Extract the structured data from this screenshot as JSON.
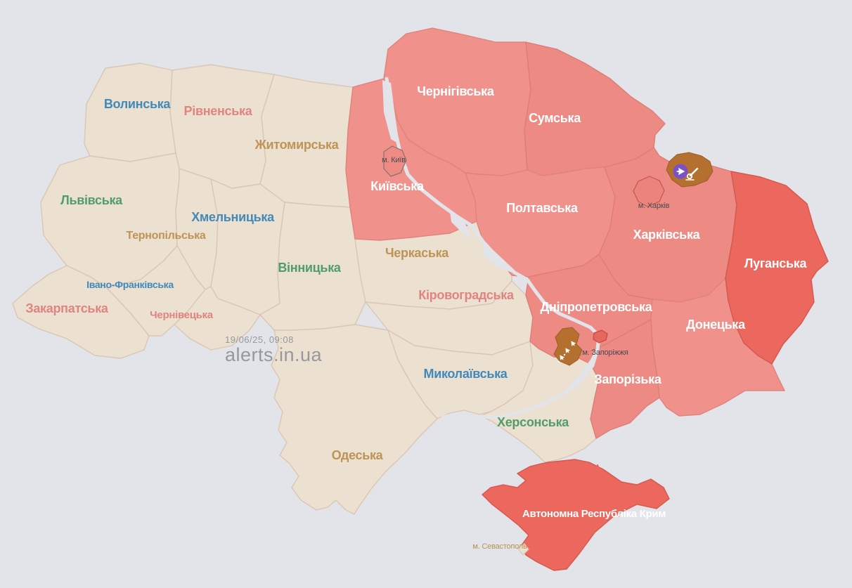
{
  "map": {
    "background_color": "#e3e4e9",
    "watermark": {
      "timestamp": "19/06/25, 09:08",
      "brand": "alerts.in.ua",
      "color": "#97979f"
    },
    "status_colors": {
      "no_alert": "#ece0d1",
      "air_alert": "#f0918c",
      "air_alert_alt": "#ee8a84",
      "occupied_alert": "#ec675d",
      "hromada_artillery": "#b5702f",
      "uav_badge": "#7a52c8"
    },
    "stroke_colors": {
      "no_alert": "#d9c7b2",
      "air_alert": "#e0837d",
      "air_alert_alt": "#de7d77",
      "occupied_alert": "#d4584e",
      "hromada_artillery": "#9a5d26"
    },
    "label_palette": {
      "blue": "#4189b9",
      "green": "#4f9e6a",
      "tan": "#bd9456",
      "salmon": "#e08480",
      "white": "#ffffff",
      "city": "#4a4a52",
      "sevastopol": "#b8924f"
    },
    "regions": [
      {
        "id": "volynska",
        "name": "Волинська",
        "status": "no_alert",
        "label_color": "blue"
      },
      {
        "id": "rivnenska",
        "name": "Рівненська",
        "status": "no_alert",
        "label_color": "salmon"
      },
      {
        "id": "zhytomyrska",
        "name": "Житомирська",
        "status": "no_alert",
        "label_color": "tan"
      },
      {
        "id": "lvivska",
        "name": "Львівська",
        "status": "no_alert",
        "label_color": "green"
      },
      {
        "id": "ternopilska",
        "name": "Тернопільська",
        "status": "no_alert",
        "label_color": "tan"
      },
      {
        "id": "khmelnytska",
        "name": "Хмельницька",
        "status": "no_alert",
        "label_color": "blue"
      },
      {
        "id": "ivano-frankivska",
        "name": "Івано-Франківська",
        "status": "no_alert",
        "label_color": "blue"
      },
      {
        "id": "zakarpatska",
        "name": "Закарпатська",
        "status": "no_alert",
        "label_color": "salmon"
      },
      {
        "id": "chernivetska",
        "name": "Чернівецька",
        "status": "no_alert",
        "label_color": "salmon"
      },
      {
        "id": "vinnytska",
        "name": "Вінницька",
        "status": "no_alert",
        "label_color": "green"
      },
      {
        "id": "cherkaska",
        "name": "Черкаська",
        "status": "no_alert",
        "label_color": "tan"
      },
      {
        "id": "kirovohradska",
        "name": "Кіровоградська",
        "status": "no_alert",
        "label_color": "salmon"
      },
      {
        "id": "mykolaivska",
        "name": "Миколаївська",
        "status": "no_alert",
        "label_color": "blue"
      },
      {
        "id": "khersonska",
        "name": "Херсонська",
        "status": "no_alert",
        "label_color": "green"
      },
      {
        "id": "odeska",
        "name": "Одеська",
        "status": "no_alert",
        "label_color": "tan"
      },
      {
        "id": "kyivska",
        "name": "Київська",
        "status": "air_alert",
        "label_color": "white"
      },
      {
        "id": "chernihivska",
        "name": "Чернігівська",
        "status": "air_alert",
        "label_color": "white"
      },
      {
        "id": "sumska",
        "name": "Сумська",
        "status": "air_alert_alt",
        "label_color": "white"
      },
      {
        "id": "poltavska",
        "name": "Полтавська",
        "status": "air_alert",
        "label_color": "white"
      },
      {
        "id": "kharkivska",
        "name": "Харківська",
        "status": "air_alert_alt",
        "label_color": "white"
      },
      {
        "id": "dnipropetrovska",
        "name": "Дніпропетровська",
        "status": "air_alert_alt",
        "label_color": "white"
      },
      {
        "id": "donetska",
        "name": "Донецька",
        "status": "air_alert",
        "label_color": "white"
      },
      {
        "id": "zaporizka",
        "name": "Запорізька",
        "status": "air_alert_alt",
        "label_color": "white"
      },
      {
        "id": "luhanska",
        "name": "Луганська",
        "status": "occupied_alert",
        "label_color": "white"
      },
      {
        "id": "crimea",
        "name": "Автономна Республіка Крим",
        "status": "occupied_alert",
        "label_color": "white"
      }
    ],
    "cities": [
      {
        "id": "kyiv",
        "name": "м. Київ",
        "label_color": "city"
      },
      {
        "id": "kharkiv",
        "name": "м. Харків",
        "label_color": "city"
      },
      {
        "id": "zaporizhzhia",
        "name": "м. Запоріжжя",
        "label_color": "city"
      },
      {
        "id": "sevastopol",
        "name": "м. Севастополь",
        "label_color": "sevastopol"
      }
    ],
    "alert_markers": [
      {
        "id": "uav-kharkiv-north",
        "type": "uav",
        "description": "drone-threat-badge"
      },
      {
        "id": "artillery-kharkiv-north",
        "type": "artillery",
        "description": "artillery-shelling-hromada"
      },
      {
        "id": "uav-zaporizhzhia",
        "type": "uav-cluster",
        "description": "drone-threat-hromada"
      }
    ]
  }
}
